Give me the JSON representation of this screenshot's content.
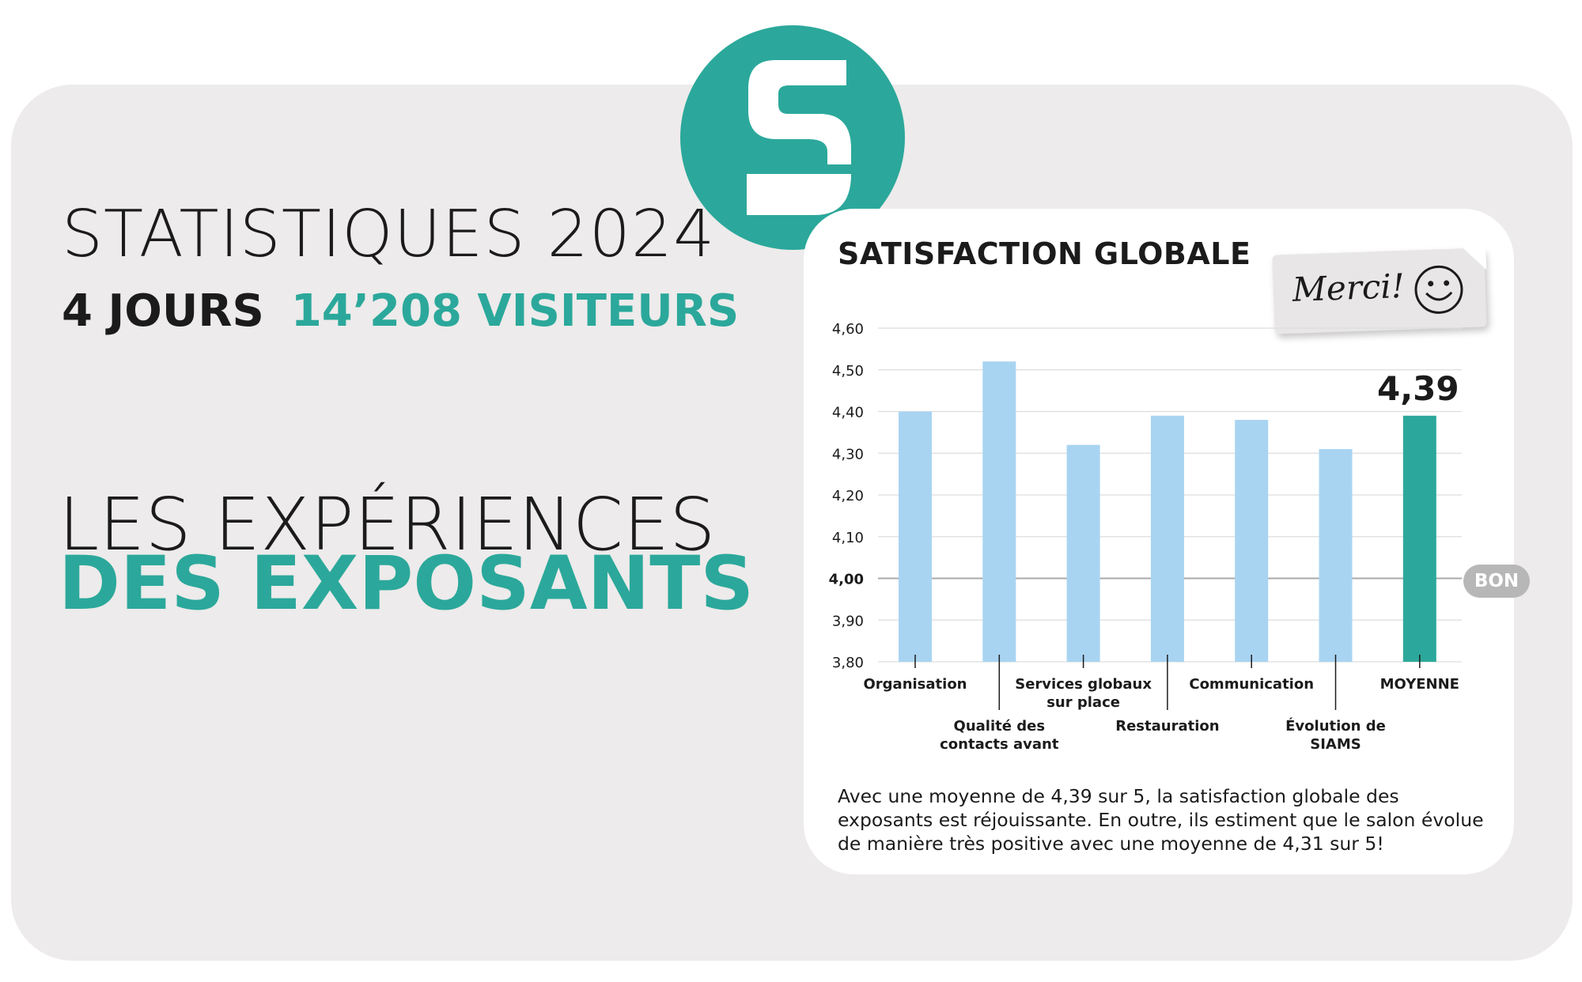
{
  "brand": {
    "logo_letter": "S",
    "accent_color": "#2ba89b"
  },
  "header": {
    "stats_title": "STATISTIQUES 2024",
    "days": "4 JOURS",
    "visitors": "14’208 VISITEURS"
  },
  "heading": {
    "line1": "LES EXPÉRIENCES",
    "line2": "DES EXPOSANTS"
  },
  "card": {
    "title": "SATISFACTION GLOBALE",
    "sticker_text": "Merci!",
    "sticker_icon": "smiley-icon",
    "reference_badge": "BON",
    "summary": "Avec une moyenne de 4,39 sur 5, la satisfaction globale des exposants est réjouissante. En outre, ils estiment que le salon évolue de manière très positive avec une moyenne de 4,31 sur 5!"
  },
  "chart_data": {
    "type": "bar",
    "title": "SATISFACTION GLOBALE",
    "categories": [
      [
        "Organisation"
      ],
      [
        "Qualité des",
        "contacts avant"
      ],
      [
        "Services globaux",
        "sur place"
      ],
      [
        "Restauration"
      ],
      [
        "Communication"
      ],
      [
        "Évolution de",
        "SIAMS"
      ],
      [
        "MOYENNE"
      ]
    ],
    "values": [
      4.4,
      4.52,
      4.32,
      4.39,
      4.38,
      4.31,
      4.39
    ],
    "highlight_index": 6,
    "highlight_label": "4,39",
    "ylim": [
      3.8,
      4.6
    ],
    "yticks": [
      "3,80",
      "3,90",
      "4,00",
      "4,10",
      "4,20",
      "4,30",
      "4,40",
      "4,50",
      "4,60"
    ],
    "reference_line": 4.0,
    "reference_label": "BON",
    "grid": true,
    "colors": {
      "bar": "#a8d4f2",
      "highlight": "#2ba89b",
      "grid": "#dddddd",
      "reference": "#aaaaaa"
    }
  }
}
